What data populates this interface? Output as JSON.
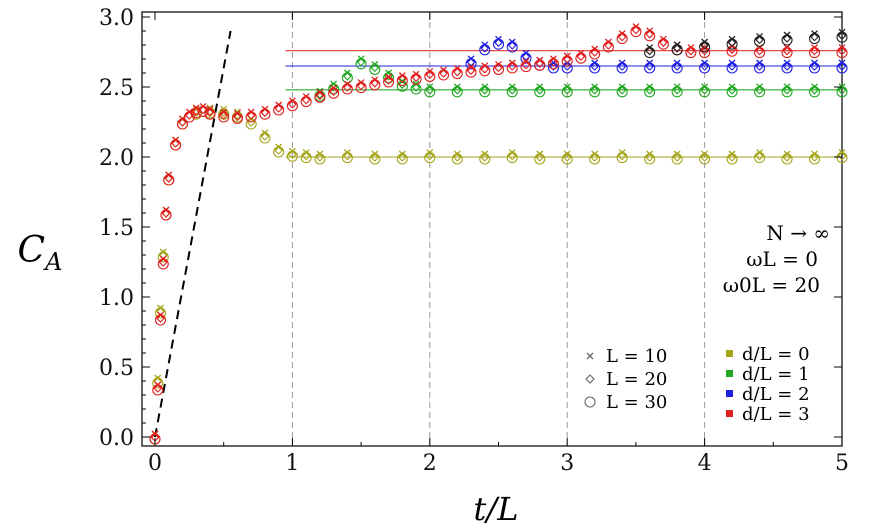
{
  "chart_data": {
    "type": "scatter",
    "xlabel": "t/L",
    "ylabel": "C_A",
    "xlim": [
      0,
      5
    ],
    "ylim": [
      -0.05,
      3.03
    ],
    "x_ticks": [
      0,
      1,
      2,
      3,
      4,
      5
    ],
    "y_ticks": [
      0.0,
      0.5,
      1.0,
      1.5,
      2.0,
      2.5,
      3.0
    ],
    "x_tick_labels": [
      "0",
      "1",
      "2",
      "3",
      "4",
      "5"
    ],
    "y_tick_labels": [
      "0.0",
      "0.5",
      "1.0",
      "1.5",
      "2.0",
      "2.5",
      "3.0"
    ],
    "vertical_grid_at": [
      1,
      2,
      3,
      4
    ],
    "grid": "dashed vertical lines",
    "annotations": [
      "N → ∞",
      "ωL = 0",
      "ω0L = 20"
    ],
    "legend_markers": [
      {
        "marker": "cross",
        "label": "L = 10"
      },
      {
        "marker": "diamond",
        "label": "L = 20"
      },
      {
        "marker": "circle",
        "label": "L = 30"
      }
    ],
    "legend_colors": [
      {
        "label": "d/L = 0",
        "color": "#a5a51c"
      },
      {
        "label": "d/L = 1",
        "color": "#22a822"
      },
      {
        "label": "d/L = 2",
        "color": "#2020e0"
      },
      {
        "label": "d/L = 3",
        "color": "#e01f1f"
      }
    ],
    "legend_placement": "bottom-right",
    "saturation_lines": [
      {
        "d_over_L": 0,
        "y": 2.0,
        "color": "#a5a51c"
      },
      {
        "d_over_L": 1,
        "y": 2.48,
        "color": "#22a822"
      },
      {
        "d_over_L": 2,
        "y": 2.65,
        "color": "#2020e0"
      },
      {
        "d_over_L": 3,
        "y": 2.76,
        "color": "#e01f1f"
      }
    ],
    "dashed_line": {
      "x": [
        0,
        0.55
      ],
      "y": [
        0,
        2.9
      ],
      "color": "#000000"
    },
    "series": [
      {
        "name": "d/L = 0",
        "color": "#a5a51c",
        "x": [
          0,
          0.02,
          0.04,
          0.06,
          0.08,
          0.1,
          0.15,
          0.2,
          0.3,
          0.4,
          0.5,
          0.6,
          0.7,
          0.8,
          0.9,
          1.0,
          1.1,
          1.2,
          1.4,
          1.6,
          1.8,
          2.0,
          2.2,
          2.4,
          2.6,
          2.8,
          3.0,
          3.2,
          3.4,
          3.6,
          3.8,
          4.0,
          4.2,
          4.4,
          4.6,
          4.8,
          5.0
        ],
        "y": [
          0,
          0.4,
          0.9,
          1.3,
          1.6,
          1.85,
          2.1,
          2.25,
          2.32,
          2.33,
          2.32,
          2.3,
          2.25,
          2.15,
          2.05,
          2.02,
          2.01,
          2.0,
          2.01,
          2.0,
          2.0,
          2.01,
          2.0,
          2.0,
          2.01,
          2.0,
          2.0,
          2.0,
          2.01,
          2.0,
          2.0,
          2.0,
          2.0,
          2.01,
          2.0,
          2.0,
          2.01
        ]
      },
      {
        "name": "d/L = 1",
        "color": "#22a822",
        "x": [
          1.2,
          1.3,
          1.4,
          1.5,
          1.6,
          1.7,
          1.8,
          1.9,
          2.0,
          2.2,
          2.4,
          2.6,
          2.8,
          3.0,
          3.2,
          3.4,
          3.6,
          3.8,
          4.0,
          4.2,
          4.4,
          4.6,
          4.8,
          5.0
        ],
        "y": [
          2.45,
          2.5,
          2.58,
          2.68,
          2.64,
          2.58,
          2.52,
          2.5,
          2.48,
          2.48,
          2.48,
          2.48,
          2.48,
          2.48,
          2.48,
          2.48,
          2.48,
          2.48,
          2.48,
          2.48,
          2.48,
          2.48,
          2.48,
          2.48
        ]
      },
      {
        "name": "d/L = 2",
        "color": "#2020e0",
        "x": [
          2.3,
          2.4,
          2.5,
          2.6,
          2.7,
          2.8,
          2.9,
          3.0,
          3.2,
          3.4,
          3.6,
          3.8,
          4.0,
          4.2,
          4.4,
          4.6,
          4.8,
          5.0
        ],
        "y": [
          2.68,
          2.78,
          2.82,
          2.8,
          2.72,
          2.67,
          2.65,
          2.65,
          2.65,
          2.65,
          2.65,
          2.65,
          2.65,
          2.65,
          2.65,
          2.65,
          2.65,
          2.65
        ]
      },
      {
        "name": "d/L = 3",
        "color": "#e01f1f",
        "x": [
          0,
          0.02,
          0.04,
          0.06,
          0.08,
          0.1,
          0.15,
          0.2,
          0.25,
          0.3,
          0.35,
          0.4,
          0.5,
          0.6,
          0.7,
          0.8,
          0.9,
          1.0,
          1.1,
          1.2,
          1.3,
          1.4,
          1.5,
          1.6,
          1.7,
          1.8,
          1.9,
          2.0,
          2.1,
          2.2,
          2.3,
          2.4,
          2.5,
          2.6,
          2.7,
          2.8,
          2.9,
          3.0,
          3.1,
          3.2,
          3.3,
          3.4,
          3.5,
          3.6,
          3.7,
          3.8,
          3.9,
          4.0,
          4.2,
          4.4,
          4.6,
          4.8,
          5.0
        ],
        "y": [
          0,
          0.35,
          0.85,
          1.25,
          1.6,
          1.85,
          2.1,
          2.25,
          2.3,
          2.33,
          2.34,
          2.32,
          2.3,
          2.29,
          2.3,
          2.32,
          2.35,
          2.38,
          2.41,
          2.44,
          2.47,
          2.5,
          2.51,
          2.53,
          2.55,
          2.56,
          2.57,
          2.59,
          2.6,
          2.61,
          2.62,
          2.63,
          2.64,
          2.65,
          2.66,
          2.67,
          2.68,
          2.7,
          2.72,
          2.75,
          2.8,
          2.86,
          2.91,
          2.88,
          2.82,
          2.78,
          2.76,
          2.76,
          2.77,
          2.76,
          2.76,
          2.76,
          2.76
        ]
      },
      {
        "name": "black overlay",
        "color": "#222222",
        "x": [
          3.6,
          3.8,
          4.0,
          4.2,
          4.4,
          4.6,
          4.8,
          5.0
        ],
        "y": [
          2.76,
          2.78,
          2.8,
          2.82,
          2.84,
          2.85,
          2.86,
          2.87
        ]
      }
    ]
  }
}
